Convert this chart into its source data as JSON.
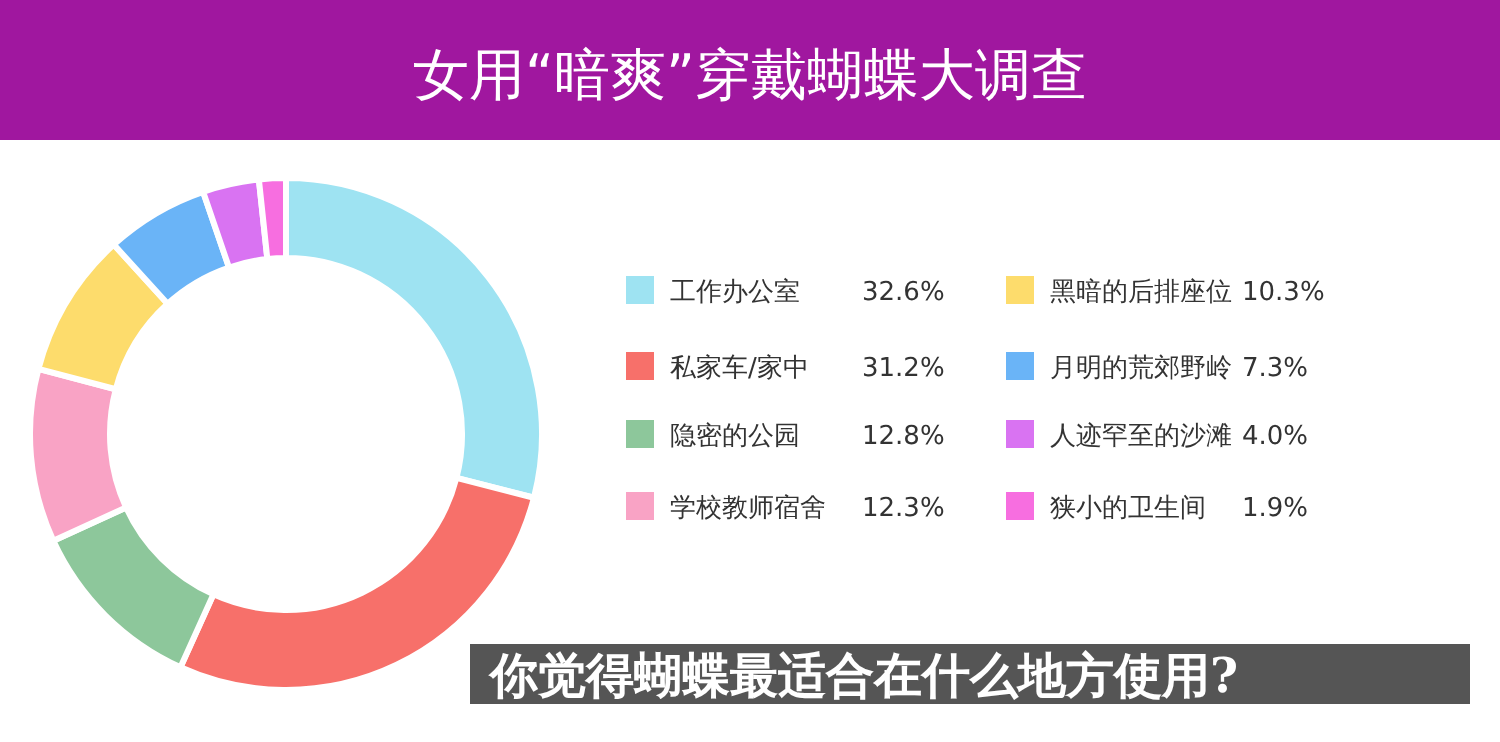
{
  "chart_data": {
    "type": "donut",
    "title": "女用“暗爽”穿戴蝴蝶大调查",
    "categories": [
      "工作办公室",
      "私家车/家中",
      "隐密的公园",
      "学校教师宿舍",
      "黑暗的后排座位",
      "月明的荒郊野岭",
      "人迹罕至的沙滩",
      "狭小的卫生间"
    ],
    "values": [
      32.6,
      31.2,
      12.8,
      12.3,
      10.3,
      7.3,
      4.0,
      1.9
    ],
    "value_labels": [
      "32.6%",
      "31.2%",
      "12.8%",
      "12.3%",
      "10.3%",
      "7.3%",
      "4.0%",
      "1.9%"
    ],
    "colors": [
      "#9ee3f2",
      "#f7706a",
      "#8dc79b",
      "#f9a3c5",
      "#fddc6c",
      "#6ab4f7",
      "#d973f2",
      "#f76ee0"
    ],
    "legend": "right",
    "annotations": [
      "你觉得蝴蝶最适合在什么地方使用?"
    ]
  }
}
